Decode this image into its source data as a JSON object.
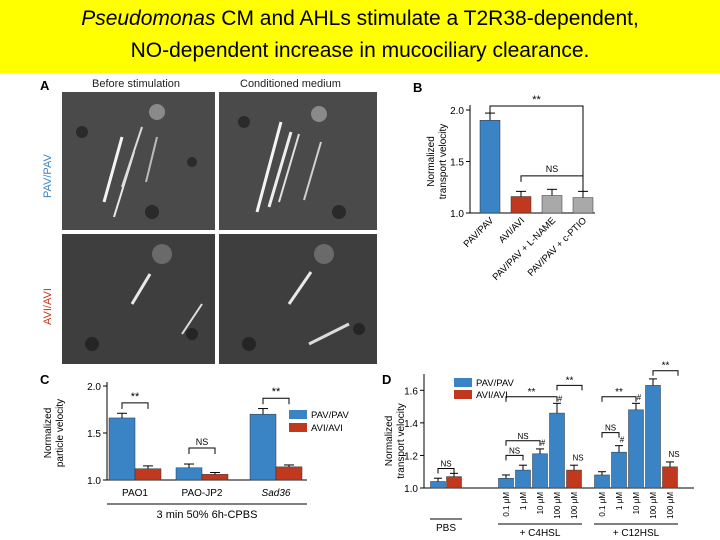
{
  "title": {
    "line1_italic": "Pseudomonas",
    "line1_rest": " CM and AHLs stimulate a T2R38-dependent,",
    "line2": "NO-dependent increase in mucociliary clearance."
  },
  "panel_letters": {
    "a": "A",
    "b": "B",
    "c": "C",
    "d": "D"
  },
  "panel_a": {
    "col_before": "Before stimulation",
    "col_cm": "Conditioned medium",
    "row_pav": "PAV/PAV",
    "row_avi": "AVI/AVI"
  },
  "colors": {
    "pav": "#3a83c4",
    "avi": "#c0391e",
    "gray": "#a9a9a9",
    "pav_label": "#3a83c4",
    "avi_label": "#c0391e"
  },
  "chart_data": [
    {
      "panel": "B",
      "type": "bar",
      "ylabel": "Normalized transport velocity",
      "ylim": [
        1.0,
        2.0
      ],
      "yticks": [
        "1.0",
        "1.5",
        "2.0"
      ],
      "categories": [
        "PAV/PAV",
        "AVI/AVI",
        "PAV/PAV + L-NAME",
        "PAV/PAV + c-PTIO"
      ],
      "values": [
        1.9,
        1.16,
        1.17,
        1.15
      ],
      "errors": [
        0.07,
        0.05,
        0.06,
        0.06
      ],
      "annotations": [
        "**",
        "NS"
      ]
    },
    {
      "panel": "C",
      "type": "bar",
      "ylabel": "Normalized particle velocity",
      "ylim": [
        1.0,
        2.0
      ],
      "yticks": [
        "1.0",
        "1.5",
        "2.0"
      ],
      "categories": [
        "PAO1",
        "PAO-JP2",
        "Sad36"
      ],
      "series": [
        {
          "name": "PAV/PAV",
          "values": [
            1.66,
            1.13,
            1.7
          ],
          "errors": [
            0.05,
            0.04,
            0.06
          ]
        },
        {
          "name": "AVI/AVI",
          "values": [
            1.12,
            1.06,
            1.14
          ],
          "errors": [
            0.03,
            0.02,
            0.02
          ]
        }
      ],
      "xcaption": "3 min 50% 6h-CPBS",
      "annotations": [
        "**",
        "NS",
        "**"
      ]
    },
    {
      "panel": "D",
      "type": "bar",
      "ylabel": "Normalized transport velocity",
      "ylim": [
        1.0,
        1.7
      ],
      "yticks": [
        "1.0",
        "1.2",
        "1.4",
        "1.6"
      ],
      "groups": [
        "PBS",
        "+ C4HSL",
        "+ C12HSL"
      ],
      "categories": [
        "",
        "0.1 μM",
        "1 μM",
        "10 μM",
        "100 μM",
        "100 μM",
        "0.1 μM",
        "1 μM",
        "10 μM",
        "100 μM",
        "100 μM"
      ],
      "series": [
        {
          "name": "PAV/PAV",
          "values": [
            1.04,
            1.06,
            1.11,
            1.21,
            1.46,
            null,
            1.08,
            1.22,
            1.48,
            1.63,
            null
          ],
          "errors": [
            0.02,
            0.02,
            0.03,
            0.03,
            0.06,
            null,
            0.02,
            0.04,
            0.04,
            0.04,
            null
          ]
        },
        {
          "name": "AVI/AVI",
          "values": [
            1.07,
            null,
            null,
            null,
            null,
            1.11,
            null,
            null,
            null,
            null,
            1.13
          ],
          "errors": [
            0.02,
            null,
            null,
            null,
            null,
            0.03,
            null,
            null,
            null,
            null,
            0.03
          ]
        }
      ],
      "annotations": [
        "NS",
        "NS",
        "NS",
        "#",
        "#",
        "**",
        "**",
        "NS",
        "NS",
        "#",
        "#",
        "**",
        "**",
        "NS"
      ]
    }
  ]
}
